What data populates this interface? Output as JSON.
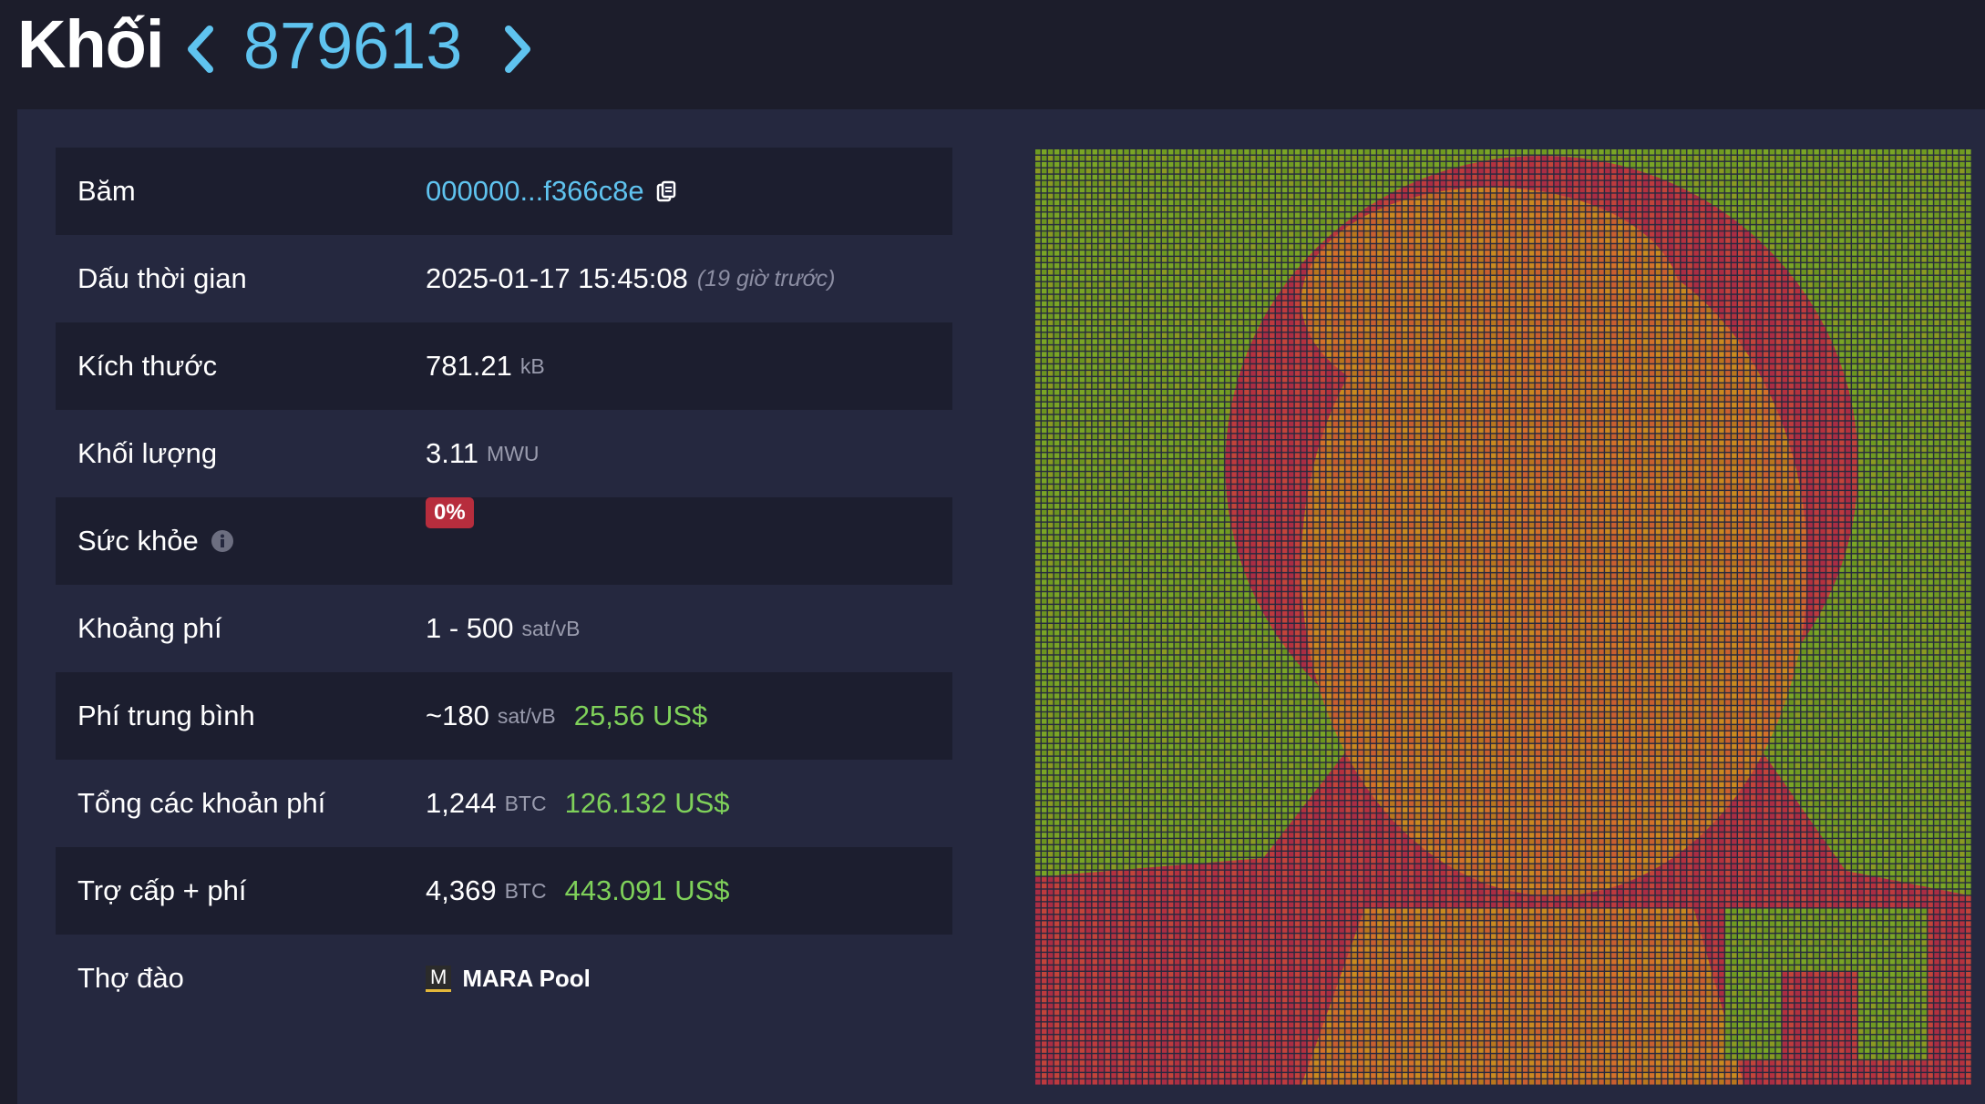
{
  "header": {
    "title": "Khối",
    "block_height": "879613"
  },
  "details": {
    "rows": [
      {
        "label": "Băm",
        "hash": "000000...f366c8e"
      },
      {
        "label": "Dấu thời gian",
        "value": "2025-01-17 15:45:08",
        "note": "(19 giờ trước)"
      },
      {
        "label": "Kích thước",
        "value": "781.21",
        "unit": "kB"
      },
      {
        "label": "Khối lượng",
        "value": "3.11",
        "unit": "MWU"
      },
      {
        "label": "Sức khỏe",
        "badge": "0%"
      },
      {
        "label": "Khoảng phí",
        "value": "1 - 500",
        "unit": "sat/vB"
      },
      {
        "label": "Phí trung bình",
        "value": "~180",
        "unit": "sat/vB",
        "fiat": "25,56 US$"
      },
      {
        "label": "Tổng các khoản phí",
        "value": "1,244",
        "unit": "BTC",
        "fiat": "126.132 US$"
      },
      {
        "label": "Trợ cấp + phí",
        "value": "4,369",
        "unit": "BTC",
        "fiat": "443.091 US$"
      },
      {
        "label": "Thợ đào",
        "pool_icon": "M",
        "pool": "MARA Pool"
      }
    ]
  }
}
